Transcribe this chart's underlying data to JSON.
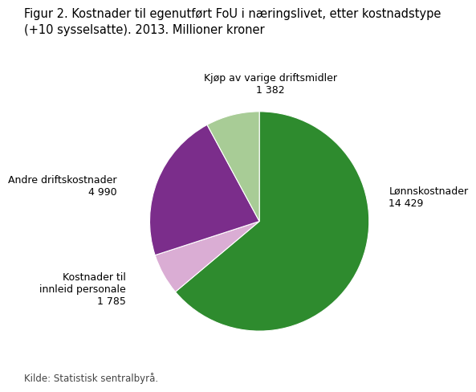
{
  "title": "Figur 2. Kostnader til egenutført FoU i næringslivet, etter kostnadstype\n(+10 sysselsatte). 2013. Millioner kroner",
  "source": "Kilde: Statistisk sentralbyrå.",
  "slices": [
    {
      "label": "Lønnskostnader\n14 429",
      "value": 14429,
      "color": "#2e8b2e"
    },
    {
      "label": "Kjøp av varige driftsmidler\n1 382",
      "value": 1382,
      "color": "#daadd4"
    },
    {
      "label": "Andre driftskostnader\n4 990",
      "value": 4990,
      "color": "#7b2d8b"
    },
    {
      "label": "Kostnader til\ninnleid personale\n1 785",
      "value": 1785,
      "color": "#a8cc96"
    }
  ],
  "startangle": 90,
  "background_color": "#ffffff",
  "title_fontsize": 10.5,
  "label_fontsize": 9,
  "source_fontsize": 8.5
}
